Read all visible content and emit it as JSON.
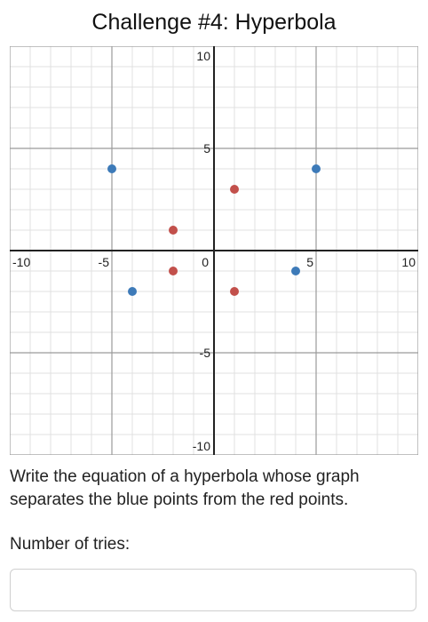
{
  "title": "Challenge #4: Hyperbola",
  "instructions": "Write the equation of a hyperbola whose graph separates the blue points from the red points.",
  "tries_label": "Number of tries:",
  "tries_input": {
    "value": "",
    "placeholder": ""
  },
  "colors": {
    "blue": "#3d7ab8",
    "red": "#c2504b",
    "axis": "#222222",
    "major_grid": "#9a9a9a",
    "minor_grid": "#e0e0e0"
  },
  "chart_data": {
    "type": "scatter",
    "xlim": [
      -10,
      10
    ],
    "ylim": [
      -10,
      10
    ],
    "x_ticks": [
      -10,
      -5,
      0,
      5,
      10
    ],
    "y_ticks": [
      -10,
      -5,
      5,
      10
    ],
    "grid": true,
    "series": [
      {
        "color": "blue",
        "points": [
          [
            -5,
            4
          ],
          [
            5,
            4
          ],
          [
            -4,
            -2
          ],
          [
            4,
            -1
          ]
        ]
      },
      {
        "color": "red",
        "points": [
          [
            1,
            3
          ],
          [
            -2,
            1
          ],
          [
            -2,
            -1
          ],
          [
            1,
            -2
          ]
        ]
      }
    ]
  }
}
